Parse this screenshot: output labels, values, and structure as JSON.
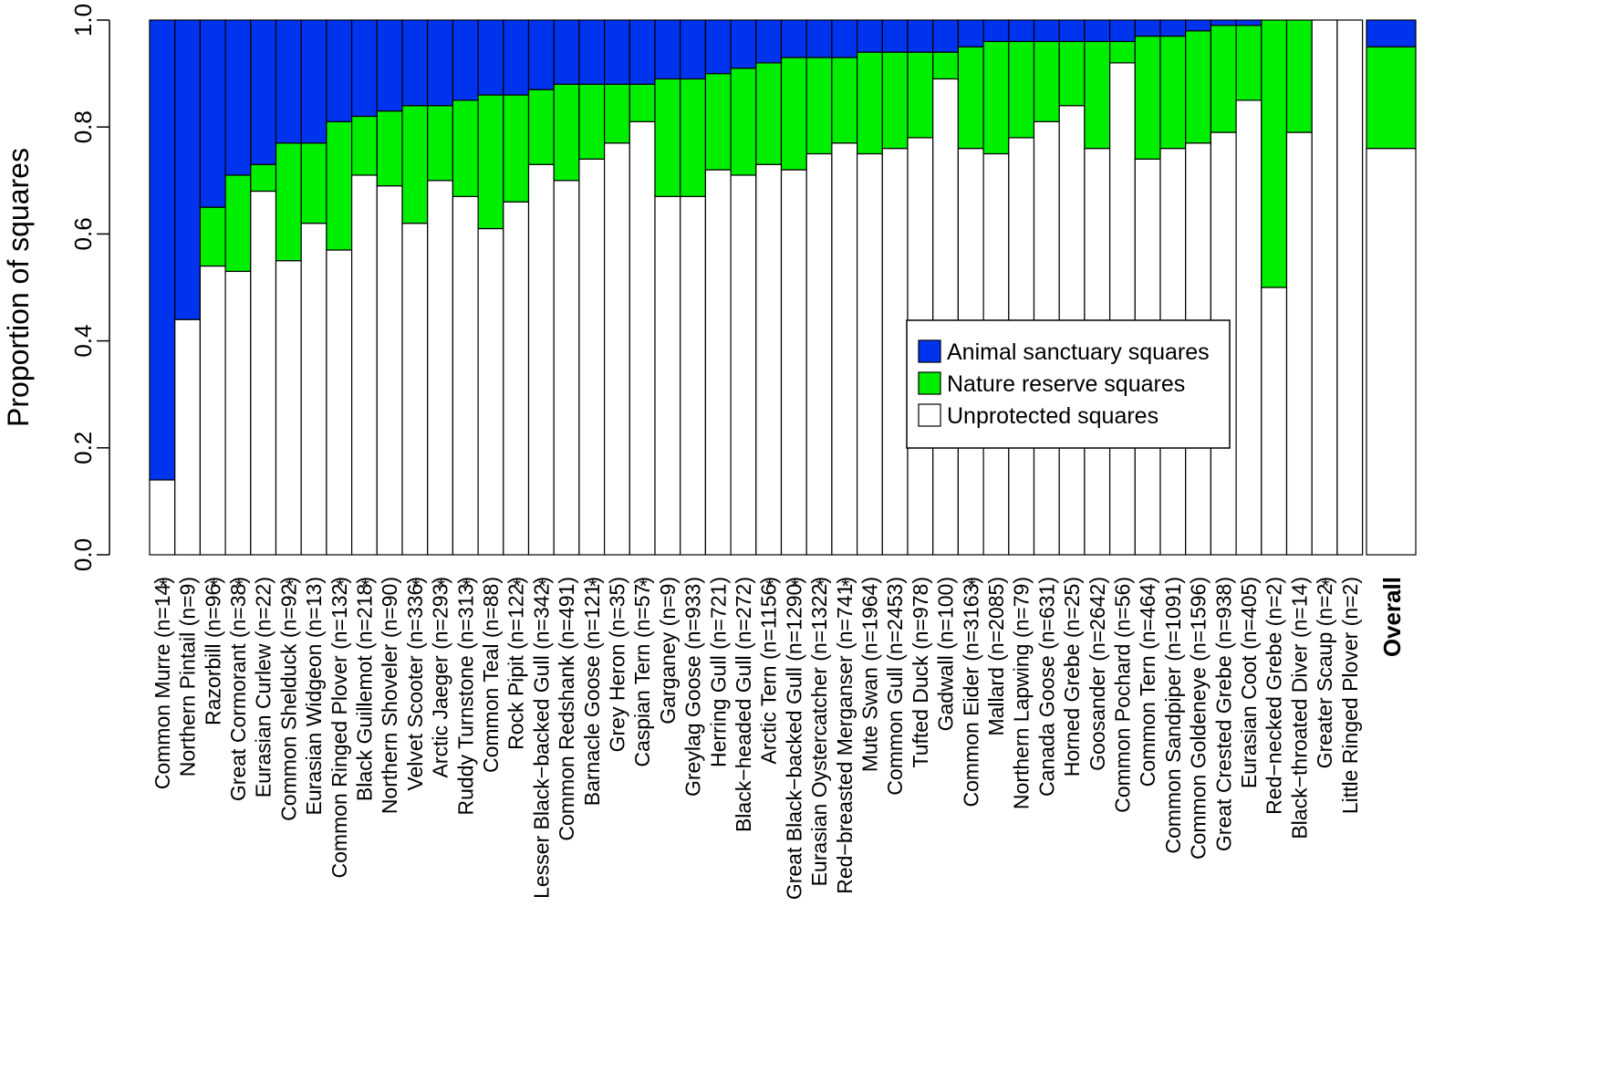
{
  "chart_data": {
    "type": "bar",
    "stacked": true,
    "ylabel": "Proportion of squares",
    "ylim": [
      0,
      1
    ],
    "yticks": [
      "0.0",
      "0.2",
      "0.4",
      "0.6",
      "0.8",
      "1.0"
    ],
    "colors": {
      "unprotected": "#ffffff",
      "reserve": "#00ee00",
      "sanctuary": "#0033ee",
      "outline": "#000000"
    },
    "legend": {
      "position": "center-right",
      "entries": [
        {
          "key": "sanctuary",
          "label": "Animal sanctuary squares"
        },
        {
          "key": "reserve",
          "label": "Nature reserve squares"
        },
        {
          "key": "unprotected",
          "label": "Unprotected squares"
        }
      ]
    },
    "categories": [
      "Common Murre (n=14)",
      "Northern Pintail (n=9)",
      "Razorbill (n=96)",
      "Great Cormorant (n=38)",
      "Eurasian Curlew (n=22)",
      "Common Shelduck (n=92)",
      "Eurasian Widgeon (n=13)",
      "Common Ringed Plover (n=132)",
      "Black Guillemot (n=218)",
      "Northern Shoveler (n=90)",
      "Velvet Scooter (n=336)",
      "Arctic Jaeger (n=293)",
      "Ruddy Turnstone (n=313)",
      "Common Teal (n=88)",
      "Rock Pipit (n=122)",
      "Lesser Black−backed Gull (n=342)",
      "Common Redshank (n=491)",
      "Barnacle Goose (n=121)",
      "Grey Heron (n=35)",
      "Caspian Tern (n=57)",
      "Garganey (n=9)",
      "Greylag Goose (n=933)",
      "Herring Gull (n=721)",
      "Black−headed Gull (n=272)",
      "Arctic Tern (n=1156)",
      "Great Black−backed Gull (n=1290)",
      "Eurasian Oystercatcher (n=1322)",
      "Red−breasted Merganser (n=741)",
      "Mute Swan (n=1964)",
      "Common Gull (n=2453)",
      "Tufted Duck (n=978)",
      "Gadwall (n=100)",
      "Common Eider (n=3163)",
      "Mallard (n=2085)",
      "Northern Lapwing (n=79)",
      "Canada Goose (n=631)",
      "Horned Grebe (n=25)",
      "Goosander (n=2642)",
      "Common Pochard (n=56)",
      "Common Tern (n=464)",
      "Common Sandpiper (n=1091)",
      "Common Goldeneye (n=1596)",
      "Great Crested Grebe (n=938)",
      "Eurasian Coot (n=405)",
      "Red−necked Grebe (n=2)",
      "Black−throated Diver (n=14)",
      "Greater Scaup (n=2)",
      "Little Ringed Plover (n=2)"
    ],
    "significant": [
      true,
      false,
      true,
      true,
      false,
      true,
      false,
      true,
      true,
      false,
      true,
      true,
      true,
      false,
      true,
      true,
      false,
      true,
      false,
      true,
      false,
      false,
      false,
      false,
      true,
      true,
      true,
      true,
      false,
      false,
      false,
      false,
      true,
      false,
      false,
      false,
      false,
      false,
      false,
      false,
      false,
      false,
      false,
      false,
      false,
      false,
      true,
      false
    ],
    "significance_marker": "*",
    "series": [
      {
        "key": "unprotected",
        "values": [
          0.14,
          0.44,
          0.54,
          0.53,
          0.68,
          0.55,
          0.62,
          0.57,
          0.71,
          0.69,
          0.62,
          0.7,
          0.67,
          0.61,
          0.66,
          0.73,
          0.7,
          0.74,
          0.77,
          0.81,
          0.67,
          0.67,
          0.72,
          0.71,
          0.73,
          0.72,
          0.75,
          0.77,
          0.75,
          0.76,
          0.78,
          0.89,
          0.76,
          0.75,
          0.78,
          0.81,
          0.84,
          0.76,
          0.92,
          0.74,
          0.76,
          0.77,
          0.79,
          0.85,
          0.5,
          0.79,
          1.0,
          1.0
        ]
      },
      {
        "key": "reserve",
        "values": [
          0.0,
          0.0,
          0.11,
          0.18,
          0.05,
          0.22,
          0.15,
          0.24,
          0.11,
          0.14,
          0.22,
          0.14,
          0.18,
          0.25,
          0.2,
          0.14,
          0.18,
          0.14,
          0.11,
          0.07,
          0.22,
          0.22,
          0.18,
          0.2,
          0.19,
          0.21,
          0.18,
          0.16,
          0.19,
          0.18,
          0.16,
          0.05,
          0.19,
          0.21,
          0.18,
          0.15,
          0.12,
          0.2,
          0.04,
          0.23,
          0.21,
          0.21,
          0.2,
          0.14,
          0.5,
          0.21,
          0.0,
          0.0
        ]
      },
      {
        "key": "sanctuary",
        "values": [
          0.86,
          0.56,
          0.35,
          0.29,
          0.27,
          0.23,
          0.23,
          0.19,
          0.18,
          0.17,
          0.16,
          0.16,
          0.15,
          0.14,
          0.14,
          0.13,
          0.12,
          0.12,
          0.12,
          0.12,
          0.11,
          0.11,
          0.1,
          0.09,
          0.08,
          0.07,
          0.07,
          0.07,
          0.06,
          0.06,
          0.06,
          0.06,
          0.05,
          0.04,
          0.04,
          0.04,
          0.04,
          0.04,
          0.04,
          0.03,
          0.03,
          0.02,
          0.01,
          0.01,
          0.0,
          0.0,
          0.0,
          0.0
        ]
      }
    ],
    "overall": {
      "label": "Overall",
      "unprotected": 0.76,
      "reserve": 0.19,
      "sanctuary": 0.05
    }
  }
}
